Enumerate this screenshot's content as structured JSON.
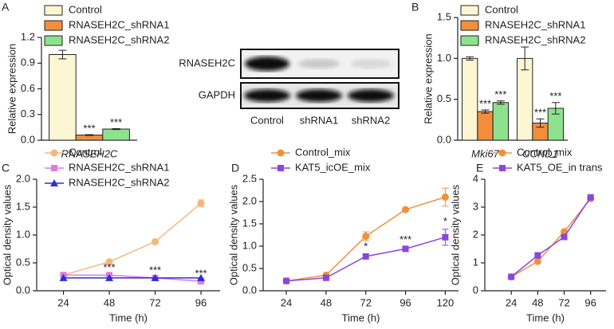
{
  "chart_data": [
    {
      "type": "bar",
      "panel": "A",
      "ylabel": "Relative expression",
      "categories": [
        "RNASEH2C"
      ],
      "ylim": [
        0,
        1.2
      ],
      "yticks": [
        {
          "value": 0,
          "label": "0.0"
        },
        {
          "value": 0.3,
          "label": "0.3"
        },
        {
          "value": 0.6,
          "label": "0.6"
        },
        {
          "value": 0.9,
          "label": "0.9"
        },
        {
          "value": 1.2,
          "label": "1.2"
        }
      ],
      "series": [
        {
          "name": "Control",
          "color": "#fdf6d3",
          "values": [
            1.0
          ],
          "errors": [
            0.05
          ]
        },
        {
          "name": "RNASEH2C_shRNA1",
          "color": "#f28e3c",
          "values": [
            0.06
          ],
          "errors": [
            0.005
          ],
          "annotations": [
            "***"
          ]
        },
        {
          "name": "RNASEH2C_shRNA2",
          "color": "#8ee28e",
          "values": [
            0.13
          ],
          "errors": [
            0.005
          ],
          "annotations": [
            "***"
          ]
        }
      ]
    },
    {
      "type": "bar",
      "panel": "B",
      "ylabel": "Relative expression",
      "categories": [
        "Mki67",
        "CCND1"
      ],
      "ylim": [
        0,
        1.5
      ],
      "yticks": [
        {
          "value": 0,
          "label": "0.0"
        },
        {
          "value": 0.5,
          "label": "0.5"
        },
        {
          "value": 1,
          "label": "1.0"
        },
        {
          "value": 1.5,
          "label": "1.5"
        }
      ],
      "series": [
        {
          "name": "Control",
          "color": "#fdf6d3",
          "values": [
            1.0,
            1.0
          ],
          "errors": [
            0.02,
            0.14
          ]
        },
        {
          "name": "RNASEH2C_shRNA1",
          "color": "#f28e3c",
          "values": [
            0.35,
            0.21
          ],
          "errors": [
            0.02,
            0.05
          ],
          "annotations": [
            "***",
            "***"
          ]
        },
        {
          "name": "RNASEH2C_shRNA2",
          "color": "#8ee28e",
          "values": [
            0.46,
            0.39
          ],
          "errors": [
            0.02,
            0.07
          ],
          "annotations": [
            "***",
            "***"
          ]
        }
      ]
    },
    {
      "type": "line",
      "panel": "C",
      "ylabel": "Optical density values",
      "xlabel": "Time (h)",
      "x": [
        24,
        48,
        72,
        96
      ],
      "xlim": [
        10,
        106
      ],
      "xticks": [
        24,
        48,
        72,
        96
      ],
      "ylim": [
        0,
        2
      ],
      "yticks": [
        {
          "value": 0,
          "label": "0.0"
        },
        {
          "value": 0.5,
          "label": "0.5"
        },
        {
          "value": 1,
          "label": "1.0"
        },
        {
          "value": 1.5,
          "label": "1.5"
        },
        {
          "value": 2,
          "label": "2.0"
        }
      ],
      "series": [
        {
          "name": "Control",
          "color": "#f7b67a",
          "marker": "circle",
          "values": [
            0.28,
            0.52,
            0.88,
            1.57
          ],
          "errors": [
            0.02,
            0.02,
            0.03,
            0.06
          ]
        },
        {
          "name": "RNASEH2C_shRNA1",
          "color": "#e07ae0",
          "marker": "square",
          "values": [
            0.28,
            0.28,
            0.23,
            0.17
          ],
          "annotations": [
            null,
            "***",
            "***",
            "***"
          ]
        },
        {
          "name": "RNASEH2C_shRNA2",
          "color": "#2e2ed8",
          "marker": "triangle",
          "values": [
            0.23,
            0.23,
            0.23,
            0.23
          ]
        }
      ]
    },
    {
      "type": "line",
      "panel": "D",
      "ylabel": "Optical density values",
      "xlabel": "Time (h)",
      "x": [
        24,
        48,
        72,
        96,
        120
      ],
      "xlim": [
        10,
        128
      ],
      "xticks": [
        24,
        48,
        72,
        96,
        120
      ],
      "ylim": [
        0,
        2.5
      ],
      "yticks": [
        {
          "value": 0,
          "label": "0.0"
        },
        {
          "value": 0.5,
          "label": "0.5"
        },
        {
          "value": 1,
          "label": "1.0"
        },
        {
          "value": 1.5,
          "label": "1.5"
        },
        {
          "value": 2,
          "label": "2.0"
        },
        {
          "value": 2.5,
          "label": "2.5"
        }
      ],
      "series": [
        {
          "name": "Control_mix",
          "color": "#f0913a",
          "marker": "circle",
          "values": [
            0.22,
            0.35,
            1.22,
            1.82,
            2.1
          ],
          "errors": [
            0.02,
            0.02,
            0.1,
            0.03,
            0.2
          ]
        },
        {
          "name": "KAT5_icOE_mix",
          "color": "#8a46e0",
          "marker": "square",
          "values": [
            0.22,
            0.29,
            0.77,
            0.94,
            1.2
          ],
          "errors": [
            0.02,
            0.02,
            0.05,
            0.03,
            0.18
          ],
          "annotations": [
            null,
            null,
            "*",
            "***",
            "*"
          ]
        }
      ]
    },
    {
      "type": "line",
      "panel": "E",
      "ylabel": "Optical density values",
      "xlabel": "Time (h)",
      "x": [
        24,
        48,
        72,
        96
      ],
      "xlim": [
        0,
        110
      ],
      "xticks": [
        24,
        48,
        72,
        96
      ],
      "ylim": [
        0,
        4
      ],
      "yticks": [
        0,
        1,
        2,
        3,
        4
      ],
      "series": [
        {
          "name": "Control_mix",
          "color": "#f0913a",
          "marker": "circle",
          "values": [
            0.5,
            1.05,
            2.12,
            3.3
          ]
        },
        {
          "name": "KAT5_OE_in trans",
          "color": "#8a46e0",
          "marker": "square",
          "values": [
            0.5,
            1.27,
            1.93,
            3.35
          ]
        }
      ]
    }
  ],
  "blot": {
    "rows": [
      "RNASEH2C",
      "GAPDH"
    ],
    "lanes": [
      "Control",
      "shRNA1",
      "shRNA2"
    ]
  }
}
